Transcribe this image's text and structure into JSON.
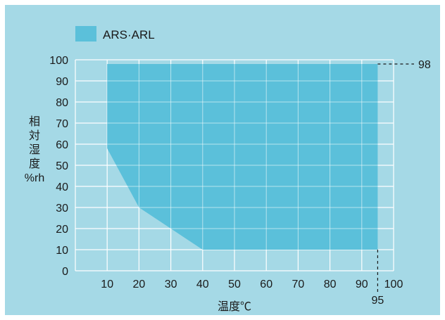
{
  "chart_data": {
    "type": "area",
    "legend": {
      "label": "ARS·ARL",
      "position": "top-left",
      "color": "#5bc0da"
    },
    "background_color": "#a5d9e6",
    "grid": true,
    "xlabel": "温度℃",
    "ylabel": [
      "相",
      "対",
      "湿",
      "度",
      "%rh"
    ],
    "xlim": [
      0,
      100
    ],
    "ylim": [
      0,
      100
    ],
    "x_ticks": [
      "10",
      "20",
      "30",
      "40",
      "50",
      "60",
      "70",
      "80",
      "90",
      "100"
    ],
    "y_ticks": [
      "0",
      "10",
      "20",
      "30",
      "40",
      "50",
      "60",
      "70",
      "80",
      "90",
      "100"
    ],
    "series": [
      {
        "name": "ARS·ARL",
        "upper": [
          {
            "x": 10,
            "y": 98
          },
          {
            "x": 95,
            "y": 98
          }
        ],
        "lower": [
          {
            "x": 10,
            "y": 58
          },
          {
            "x": 20,
            "y": 30
          },
          {
            "x": 30,
            "y": 20
          },
          {
            "x": 40,
            "y": 10
          },
          {
            "x": 95,
            "y": 10
          }
        ]
      }
    ],
    "annotations": [
      {
        "label": "98",
        "y": 98
      },
      {
        "label": "95",
        "x": 95
      }
    ]
  }
}
